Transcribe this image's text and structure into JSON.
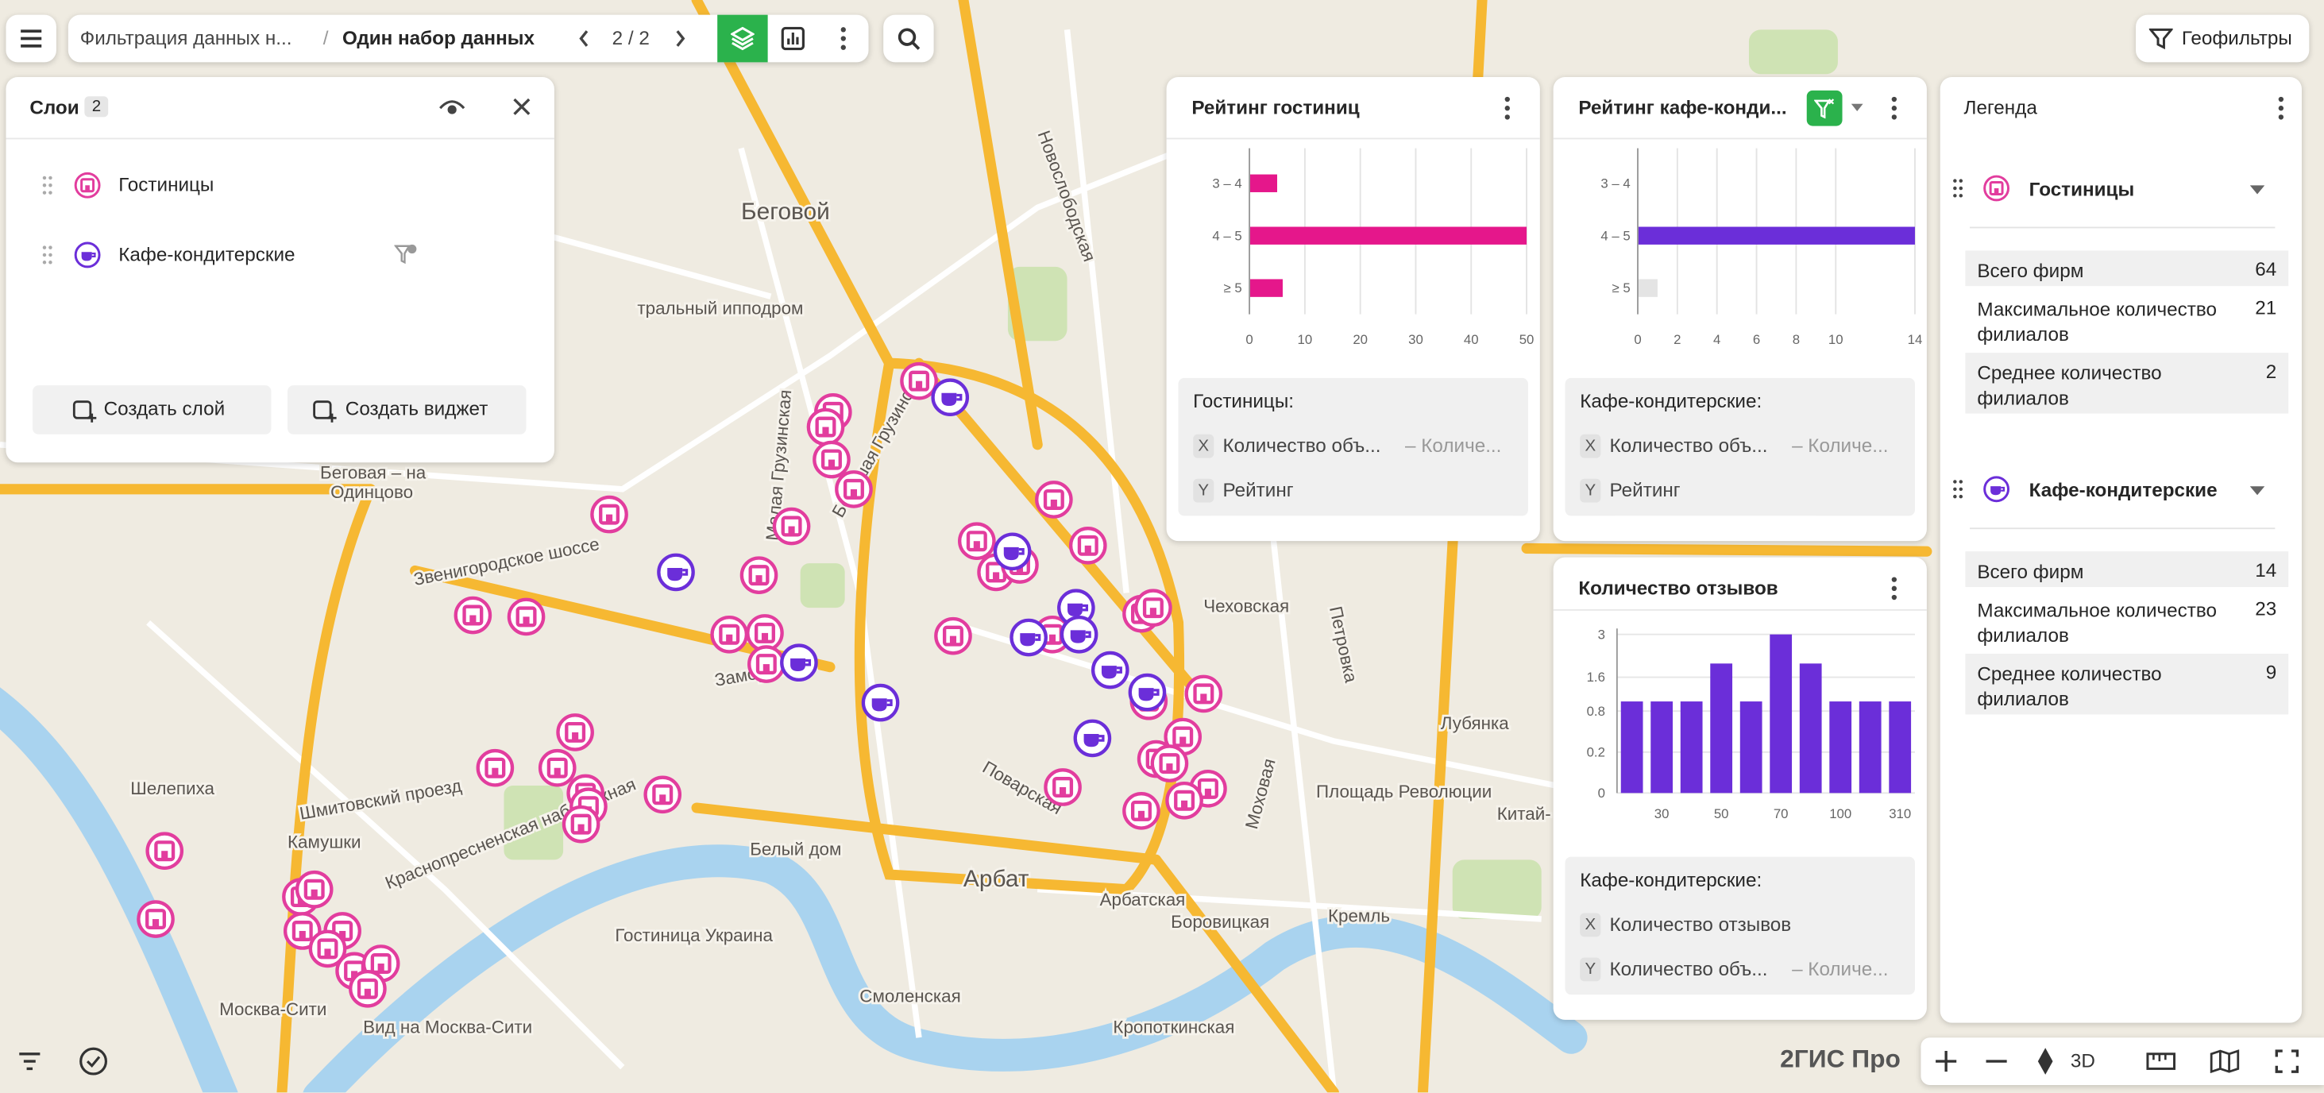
{
  "toolbar": {
    "breadcrumb": "Фильтрация данных н...",
    "separator": "/",
    "dataset": "Один набор данных",
    "pager": "2 / 2"
  },
  "geofilters": "Геофильтры",
  "layers_panel": {
    "title": "Слои",
    "count": "2",
    "layers": [
      "Гостиницы",
      "Кафе-кондитерские"
    ],
    "buttons": [
      "Создать слой",
      "Создать виджет"
    ]
  },
  "widgets": [
    {
      "title": "Рейтинг гостиниц",
      "chart": {
        "type": "hbar",
        "categories": [
          "3 – 4",
          "4 – 5",
          "≥ 5"
        ],
        "values": [
          5,
          50,
          6
        ],
        "color": "#e5178b",
        "xlim": [
          0,
          50
        ],
        "xticks": [
          0,
          10,
          20,
          30,
          40,
          50
        ],
        "grid": true
      },
      "layer_label": "Гостиницы:",
      "fields": [
        {
          "badge": "X",
          "name": "Количество объ...",
          "agg": "– Количе..."
        },
        {
          "badge": "Y",
          "name": "Рейтинг"
        }
      ]
    },
    {
      "title": "Рейтинг кафе-конди...",
      "chart": {
        "type": "hbar",
        "categories": [
          "3 – 4",
          "4 – 5",
          "≥ 5"
        ],
        "values": [
          0,
          14,
          1
        ],
        "bar_colors": [
          "#6b2ed9",
          "#6b2ed9",
          "#e4e4e4"
        ],
        "xlim": [
          0,
          14
        ],
        "xticks": [
          0,
          2,
          4,
          6,
          8,
          10,
          14
        ],
        "grid": true
      },
      "layer_label": "Кафе-кондитерские:",
      "fields": [
        {
          "badge": "X",
          "name": "Количество объ...",
          "agg": "– Количе..."
        },
        {
          "badge": "Y",
          "name": "Рейтинг"
        }
      ]
    },
    {
      "title": "Количество отзывов",
      "chart": {
        "type": "vbar",
        "categories": [
          null,
          "30",
          null,
          "50",
          null,
          "70",
          null,
          "100",
          null,
          "310"
        ],
        "values": [
          1,
          1,
          1,
          2,
          1,
          3,
          2,
          1,
          1,
          1
        ],
        "color": "#6b2ed9",
        "scale": "sqrt",
        "ylim": [
          0,
          3
        ],
        "yticks": [
          0,
          0.2,
          0.8,
          1.6,
          3
        ],
        "grid": true
      },
      "layer_label": "Кафе-кондитерские:",
      "fields": [
        {
          "badge": "X",
          "name": "Количество отзывов"
        },
        {
          "badge": "Y",
          "name": "Количество объ...",
          "agg": "– Количе..."
        }
      ]
    }
  ],
  "legend": {
    "title": "Легенда",
    "groups": [
      {
        "name": "Гостиницы",
        "stats": [
          {
            "label": "Всего фирм",
            "value": "64"
          },
          {
            "label": "Максимальное количество филиалов",
            "value": "21"
          },
          {
            "label": "Среднее количество филиалов",
            "value": "2"
          }
        ]
      },
      {
        "name": "Кафе-кондитерские",
        "stats": [
          {
            "label": "Всего фирм",
            "value": "14"
          },
          {
            "label": "Максимальное количество филиалов",
            "value": "23"
          },
          {
            "label": "Среднее количество филиалов",
            "value": "9"
          }
        ]
      }
    ]
  },
  "map": {
    "labels": [
      "Беговой",
      "тральный ипподром",
      "Беговая – на",
      "Одинцово",
      "Звенигородское шоссе",
      "Шмитовский проезд",
      "Шелепиха",
      "Камушки",
      "Краснопресненская набережная",
      "Белый дом",
      "Арбат",
      "Арбатская",
      "Гостиница Украина",
      "Москва-Сити",
      "Вид на Москва-Сити",
      "Смоленская",
      "Кропоткинская",
      "Боровицкая",
      "Кремль",
      "Площадь Революции",
      "Лубянка",
      "Чеховская",
      "Петровка",
      "Поварская",
      "Моховая",
      "Большая Грузинская",
      "Малая Грузинская",
      "Новослободская",
      "Заморенова",
      "Китай-"
    ],
    "brand": "2ГИС Про",
    "three_d": "3D"
  }
}
